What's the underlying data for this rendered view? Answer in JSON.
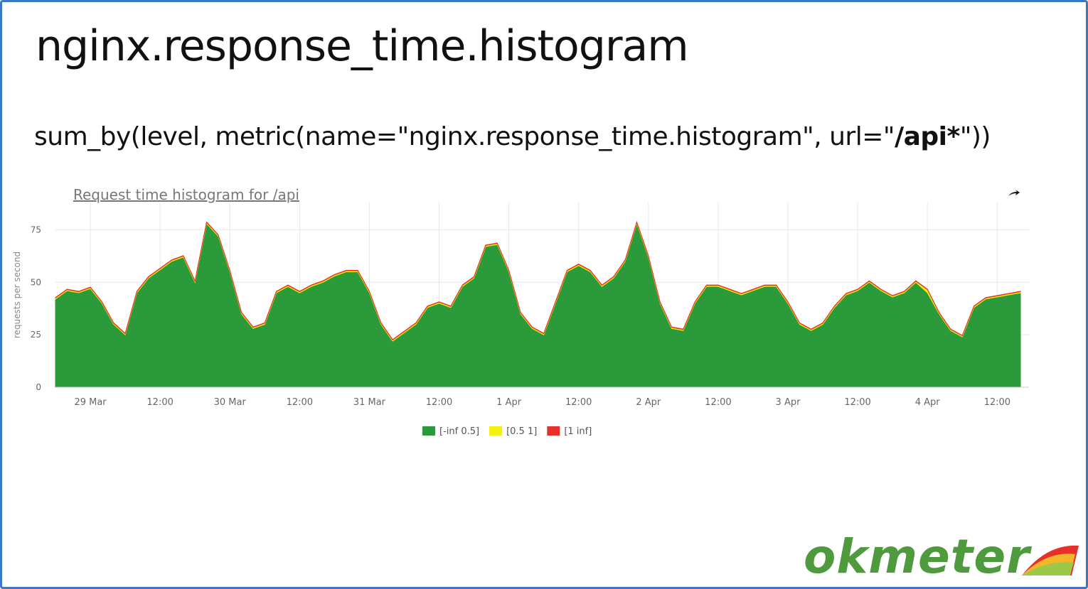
{
  "title": "nginx.response_time.histogram",
  "query": [
    "sum_by(level, metric(name=\"nginx.response_time.histogram\", url=\"",
    "/api*",
    "\"))"
  ],
  "logo": "okmeter",
  "chart_data": {
    "type": "area",
    "stacked": true,
    "title": "Request time histogram for /api",
    "ylabel": "requests per second",
    "x": [
      "28 Mar 18:00",
      "28 Mar 20:00",
      "28 Mar 22:00",
      "29 Mar 00:00",
      "29 Mar 02:00",
      "29 Mar 04:00",
      "29 Mar 06:00",
      "29 Mar 08:00",
      "29 Mar 10:00",
      "29 Mar 12:00",
      "29 Mar 14:00",
      "29 Mar 16:00",
      "29 Mar 18:00",
      "29 Mar 20:00",
      "29 Mar 22:00",
      "30 Mar 00:00",
      "30 Mar 02:00",
      "30 Mar 04:00",
      "30 Mar 06:00",
      "30 Mar 08:00",
      "30 Mar 10:00",
      "30 Mar 12:00",
      "30 Mar 14:00",
      "30 Mar 16:00",
      "30 Mar 18:00",
      "30 Mar 20:00",
      "30 Mar 22:00",
      "31 Mar 00:00",
      "31 Mar 02:00",
      "31 Mar 04:00",
      "31 Mar 06:00",
      "31 Mar 08:00",
      "31 Mar 10:00",
      "31 Mar 12:00",
      "31 Mar 14:00",
      "31 Mar 16:00",
      "31 Mar 18:00",
      "31 Mar 20:00",
      "31 Mar 22:00",
      "1 Apr 00:00",
      "1 Apr 02:00",
      "1 Apr 04:00",
      "1 Apr 06:00",
      "1 Apr 08:00",
      "1 Apr 10:00",
      "1 Apr 12:00",
      "1 Apr 14:00",
      "1 Apr 16:00",
      "1 Apr 18:00",
      "1 Apr 20:00",
      "1 Apr 22:00",
      "2 Apr 00:00",
      "2 Apr 02:00",
      "2 Apr 04:00",
      "2 Apr 06:00",
      "2 Apr 08:00",
      "2 Apr 10:00",
      "2 Apr 12:00",
      "2 Apr 14:00",
      "2 Apr 16:00",
      "2 Apr 18:00",
      "2 Apr 20:00",
      "2 Apr 22:00",
      "3 Apr 00:00",
      "3 Apr 02:00",
      "3 Apr 04:00",
      "3 Apr 06:00",
      "3 Apr 08:00",
      "3 Apr 10:00",
      "3 Apr 12:00",
      "3 Apr 14:00",
      "3 Apr 16:00",
      "3 Apr 18:00",
      "3 Apr 20:00",
      "3 Apr 22:00",
      "4 Apr 00:00",
      "4 Apr 02:00",
      "4 Apr 04:00",
      "4 Apr 06:00",
      "4 Apr 08:00",
      "4 Apr 10:00",
      "4 Apr 12:00",
      "4 Apr 14:00",
      "4 Apr 16:00"
    ],
    "series": [
      {
        "name": "[-inf 0.5]",
        "color": "#2b9a3a",
        "values": [
          42,
          46,
          45,
          47,
          40,
          30,
          25,
          45,
          52,
          56,
          60,
          62,
          50,
          78,
          72,
          55,
          35,
          28,
          30,
          45,
          48,
          45,
          48,
          50,
          53,
          55,
          55,
          45,
          30,
          22,
          26,
          30,
          38,
          40,
          38,
          48,
          52,
          67,
          68,
          55,
          35,
          28,
          25,
          40,
          55,
          58,
          55,
          48,
          52,
          60,
          78,
          62,
          40,
          28,
          27,
          40,
          48,
          48,
          46,
          44,
          46,
          48,
          48,
          40,
          30,
          27,
          30,
          38,
          44,
          46,
          50,
          46,
          43,
          45,
          50,
          45,
          35,
          27,
          24,
          38,
          42,
          43,
          44,
          45
        ]
      },
      {
        "name": "[0.5 1]",
        "color": "#f2f20c",
        "values": [
          0.5,
          0.5,
          0.5,
          0.5,
          0.5,
          0.5,
          0.5,
          0.5,
          0.5,
          0.5,
          0.5,
          0.5,
          0.5,
          0.5,
          0.5,
          0.5,
          0.5,
          0.5,
          0.5,
          0.5,
          0.5,
          0.5,
          0.5,
          0.5,
          0.5,
          0.5,
          0.5,
          0.5,
          0.5,
          0.5,
          0.5,
          0.5,
          0.5,
          0.5,
          0.5,
          0.5,
          0.5,
          0.5,
          0.5,
          0.5,
          0.5,
          0.5,
          0.5,
          0.5,
          0.5,
          0.5,
          0.5,
          0.5,
          0.5,
          0.5,
          0.5,
          0.5,
          0.5,
          0.5,
          0.5,
          0.5,
          0.5,
          0.5,
          0.5,
          0.5,
          0.5,
          0.5,
          0.5,
          0.5,
          0.5,
          0.5,
          0.5,
          0.5,
          0.5,
          0.5,
          0.5,
          0.5,
          0.5,
          0.5,
          0.5,
          1.5,
          0.5,
          0.5,
          0.5,
          0.5,
          0.5,
          0.5,
          0.5,
          0.5
        ]
      },
      {
        "name": "[1 inf]",
        "color": "#e8302a",
        "values": [
          0.2,
          0.2,
          0.2,
          0.2,
          0.2,
          0.2,
          0.2,
          0.2,
          0.2,
          0.2,
          0.2,
          0.2,
          0.2,
          0.2,
          0.2,
          0.2,
          0.2,
          0.2,
          0.2,
          0.2,
          0.2,
          0.2,
          0.2,
          0.2,
          0.2,
          0.2,
          0.2,
          0.2,
          0.2,
          0.2,
          0.2,
          0.2,
          0.2,
          0.2,
          0.2,
          0.2,
          0.2,
          0.2,
          0.2,
          0.2,
          0.2,
          0.2,
          0.2,
          0.2,
          0.2,
          0.2,
          0.2,
          0.2,
          0.2,
          0.2,
          0.2,
          0.2,
          0.2,
          0.2,
          0.2,
          0.2,
          0.2,
          0.2,
          0.2,
          0.2,
          0.2,
          0.2,
          0.2,
          0.2,
          0.2,
          0.2,
          0.2,
          0.2,
          0.2,
          0.2,
          0.2,
          0.2,
          0.2,
          0.2,
          0.2,
          0.2,
          0.2,
          0.2,
          0.2,
          0.2,
          0.2,
          0.2,
          0.2,
          0.2
        ]
      }
    ],
    "xlim": [
      "28 Mar 18:00",
      "4 Apr 16:00"
    ],
    "xticks": [
      {
        "value": "29 Mar 00:00",
        "label": "29 Mar"
      },
      {
        "value": "29 Mar 12:00",
        "label": "12:00"
      },
      {
        "value": "30 Mar 00:00",
        "label": "30 Mar"
      },
      {
        "value": "30 Mar 12:00",
        "label": "12:00"
      },
      {
        "value": "31 Mar 00:00",
        "label": "31 Mar"
      },
      {
        "value": "31 Mar 12:00",
        "label": "12:00"
      },
      {
        "value": "1 Apr 00:00",
        "label": "1 Apr"
      },
      {
        "value": "1 Apr 12:00",
        "label": "12:00"
      },
      {
        "value": "2 Apr 00:00",
        "label": "2 Apr"
      },
      {
        "value": "2 Apr 12:00",
        "label": "12:00"
      },
      {
        "value": "3 Apr 00:00",
        "label": "3 Apr"
      },
      {
        "value": "3 Apr 12:00",
        "label": "12:00"
      },
      {
        "value": "4 Apr 00:00",
        "label": "4 Apr"
      },
      {
        "value": "4 Apr 12:00",
        "label": "12:00"
      }
    ],
    "ylim": [
      0,
      88
    ],
    "yticks": [
      0,
      25,
      50,
      75
    ],
    "grid": true,
    "legend": "bottom"
  }
}
